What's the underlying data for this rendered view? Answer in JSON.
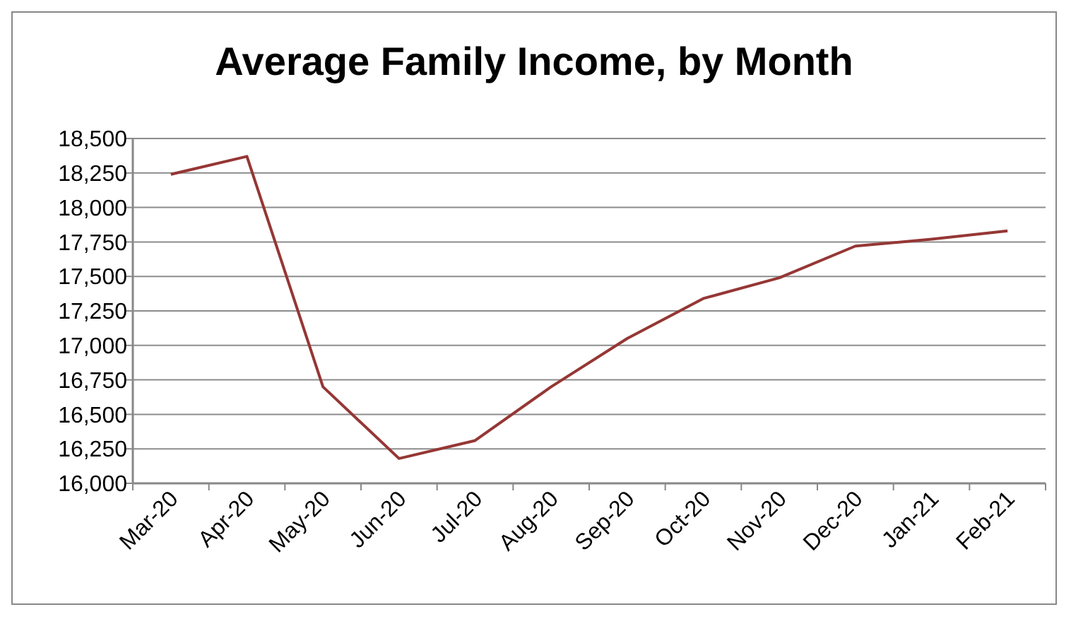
{
  "chart_data": {
    "type": "line",
    "title": "Average Family Income, by Month",
    "categories": [
      "Mar-20",
      "Apr-20",
      "May-20",
      "Jun-20",
      "Jul-20",
      "Aug-20",
      "Sep-20",
      "Oct-20",
      "Nov-20",
      "Dec-20",
      "Jan-21",
      "Feb-21"
    ],
    "series": [
      {
        "color": "#953735",
        "values": [
          18240,
          18370,
          16700,
          16180,
          16310,
          16700,
          17050,
          17340,
          17490,
          17720,
          17770,
          17830
        ]
      }
    ],
    "ylim": [
      16000,
      18500
    ],
    "yticks": [
      {
        "value": 16000,
        "label": "16,000"
      },
      {
        "value": 16250,
        "label": "16,250"
      },
      {
        "value": 16500,
        "label": "16,500"
      },
      {
        "value": 16750,
        "label": "16,750"
      },
      {
        "value": 17000,
        "label": "17,000"
      },
      {
        "value": 17250,
        "label": "17,250"
      },
      {
        "value": 17500,
        "label": "17,500"
      },
      {
        "value": 17750,
        "label": "17,750"
      },
      {
        "value": 18000,
        "label": "18,000"
      },
      {
        "value": 18250,
        "label": "18,250"
      },
      {
        "value": 18500,
        "label": "18,500"
      }
    ],
    "grid": "y",
    "marker": "none",
    "line_style": "solid"
  }
}
